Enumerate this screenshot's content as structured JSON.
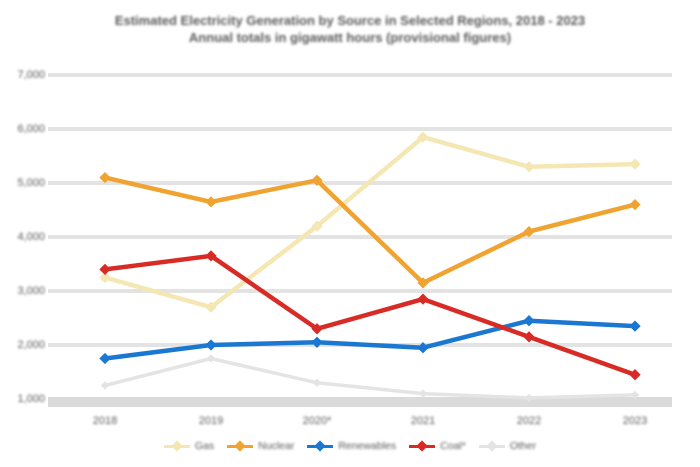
{
  "title": {
    "line1": "Estimated Electricity Generation by Source in Selected Regions, 2018 - 2023",
    "line2": "Annual totals in gigawatt hours (provisional figures)"
  },
  "chart_data": {
    "type": "line",
    "title": "Estimated Electricity Generation by Source in Selected Regions, 2018 - 2023",
    "subtitle": "Annual totals in gigawatt hours (provisional figures)",
    "categories": [
      "2018",
      "2019",
      "2020*",
      "2021",
      "2022",
      "2023"
    ],
    "y_axis": {
      "tick_labels": [
        "7,000",
        "6,000",
        "5,000",
        "4,000",
        "3,000",
        "2,000",
        "1,000"
      ],
      "min": 1000,
      "max": 7000,
      "grid": true
    },
    "legend_position": "bottom",
    "series": [
      {
        "name": "Gas",
        "color": "#f5e7b4",
        "values": [
          3250,
          2700,
          4200,
          5850,
          5300,
          5350
        ]
      },
      {
        "name": "Nuclear",
        "color": "#f0a330",
        "values": [
          5100,
          4650,
          5050,
          3150,
          4100,
          4600
        ]
      },
      {
        "name": "Renewables",
        "color": "#1b78d2",
        "values": [
          1750,
          2000,
          2050,
          1950,
          2450,
          2350
        ]
      },
      {
        "name": "Coal*",
        "color": "#d92b25",
        "values": [
          3400,
          3650,
          2300,
          2850,
          2150,
          1450
        ]
      },
      {
        "name": "Other",
        "color": "#e4e4e4",
        "values": [
          1250,
          1750,
          1300,
          1100,
          1020,
          1075
        ]
      }
    ],
    "colors": {
      "grid": "#e3e3e3",
      "axis_band": "#dadada",
      "text": "#595959"
    }
  }
}
